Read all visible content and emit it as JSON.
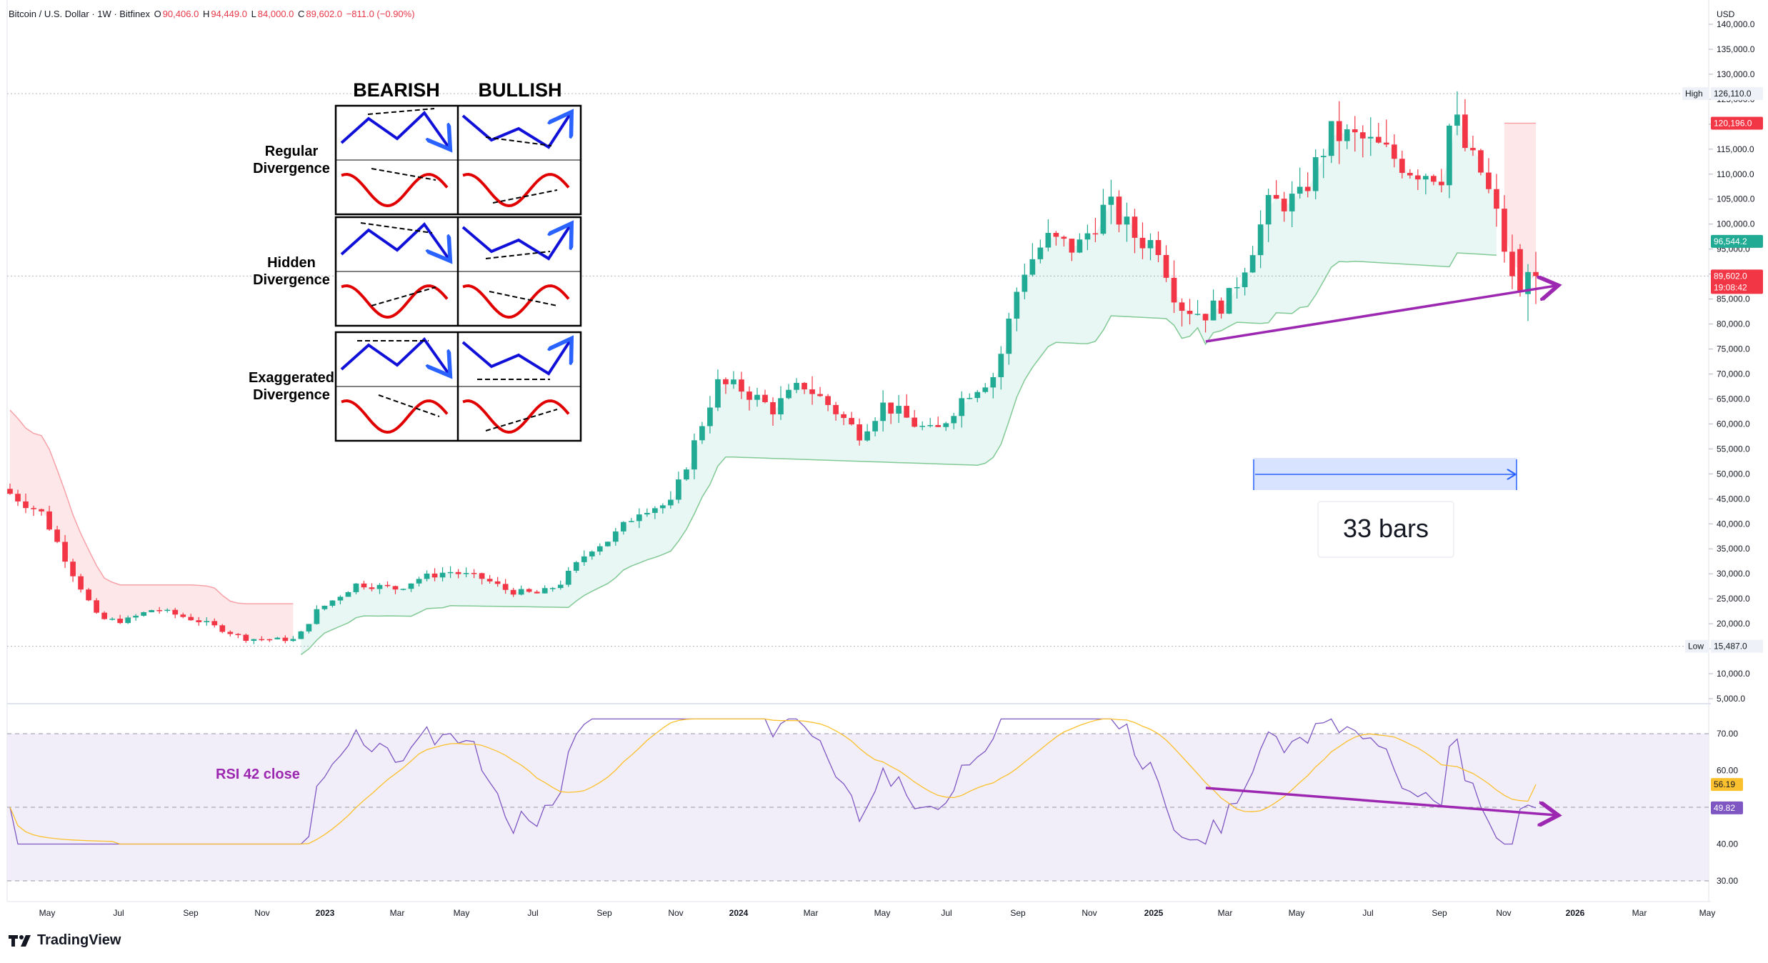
{
  "header": {
    "symbol": "Bitcoin / U.S. Dollar · 1W · Bitfinex",
    "open_label": "O",
    "open": "90,406.0",
    "high_label": "H",
    "high": "94,449.0",
    "low_label": "L",
    "low": "84,000.0",
    "close_label": "C",
    "close": "89,602.0",
    "change": "−811.0 (−0.90%)"
  },
  "price_axis": {
    "currency": "USD",
    "ticks": [
      "140,000.0",
      "135,000.0",
      "130,000.0",
      "125,000.0",
      "120,000.0",
      "115,000.0",
      "110,000.0",
      "105,000.0",
      "100,000.0",
      "95,000.0",
      "90,000.0",
      "85,000.0",
      "80,000.0",
      "75,000.0",
      "70,000.0",
      "65,000.0",
      "60,000.0",
      "55,000.0",
      "50,000.0",
      "45,000.0",
      "40,000.0",
      "35,000.0",
      "30,000.0",
      "25,000.0",
      "20,000.0",
      "15,000.0",
      "10,000.0",
      "5,000.0"
    ],
    "high_tag": {
      "label": "High",
      "value": "126,110.0"
    },
    "low_tag": {
      "label": "Low",
      "value": "15,487.0"
    },
    "red_level": "120,196.0",
    "green_level": "96,544.2",
    "last_price": "89,602.0",
    "countdown": "19:08:42"
  },
  "rsi_axis": {
    "ticks": [
      "70.00",
      "60.00",
      "50.00",
      "40.00",
      "30.00"
    ],
    "ma_value": "56.19",
    "rsi_value": "49.82"
  },
  "time_axis": [
    "May",
    "Jul",
    "Sep",
    "Nov",
    "2023",
    "Mar",
    "May",
    "Jul",
    "Sep",
    "Nov",
    "2024",
    "Mar",
    "May",
    "Jul",
    "Sep",
    "Nov",
    "2025",
    "Mar",
    "May",
    "Jul",
    "Sep",
    "Nov",
    "2026",
    "Mar",
    "May"
  ],
  "rsi_label": "RSI 42 close",
  "bars_label": "33 bars",
  "divergence_table": {
    "bearish": "BEARISH",
    "bullish": "BULLISH",
    "rows": [
      "Regular\nDivergence",
      "Hidden\nDivergence",
      "Exaggerated\nDivergence"
    ]
  },
  "brand": "TradingView",
  "colors": {
    "up": "#22ab94",
    "down": "#f23645",
    "rsi": "#7e57c2",
    "rsi_ma": "#fbc02d",
    "arrow": "#9c27b0",
    "range": "#2962ff"
  }
}
